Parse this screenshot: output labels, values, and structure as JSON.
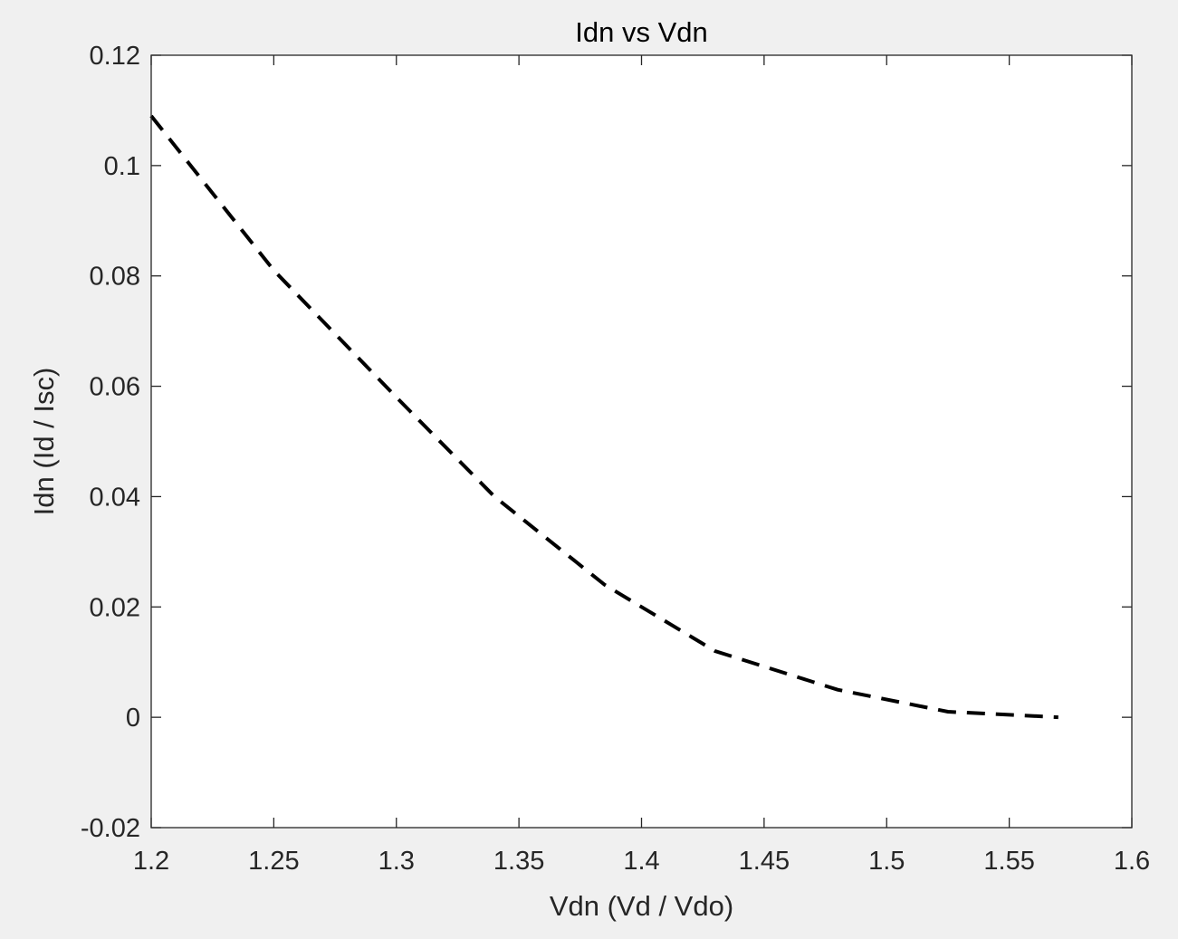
{
  "chart_data": {
    "type": "line",
    "title": "Idn vs Vdn",
    "xlabel": "Vdn (Vd / Vdo)",
    "ylabel": "Idn (Id / Isc)",
    "xlim": [
      1.2,
      1.6
    ],
    "ylim": [
      -0.02,
      0.12
    ],
    "xticks": [
      1.2,
      1.25,
      1.3,
      1.35,
      1.4,
      1.45,
      1.5,
      1.55,
      1.6
    ],
    "xtick_labels": [
      "1.2",
      "1.25",
      "1.3",
      "1.35",
      "1.4",
      "1.45",
      "1.5",
      "1.55",
      "1.6"
    ],
    "yticks": [
      -0.02,
      0,
      0.02,
      0.04,
      0.06,
      0.08,
      0.1,
      0.12
    ],
    "ytick_labels": [
      "-0.02",
      "0",
      "0.02",
      "0.04",
      "0.06",
      "0.08",
      "0.1",
      "0.12"
    ],
    "grid": false,
    "series": [
      {
        "name": "Idn",
        "color": "#000000",
        "line_style": "dashed",
        "x": [
          1.2,
          1.25,
          1.3,
          1.34,
          1.385,
          1.43,
          1.48,
          1.525,
          1.57
        ],
        "y": [
          0.109,
          0.081,
          0.058,
          0.04,
          0.024,
          0.012,
          0.005,
          0.001,
          0.0
        ]
      }
    ]
  }
}
